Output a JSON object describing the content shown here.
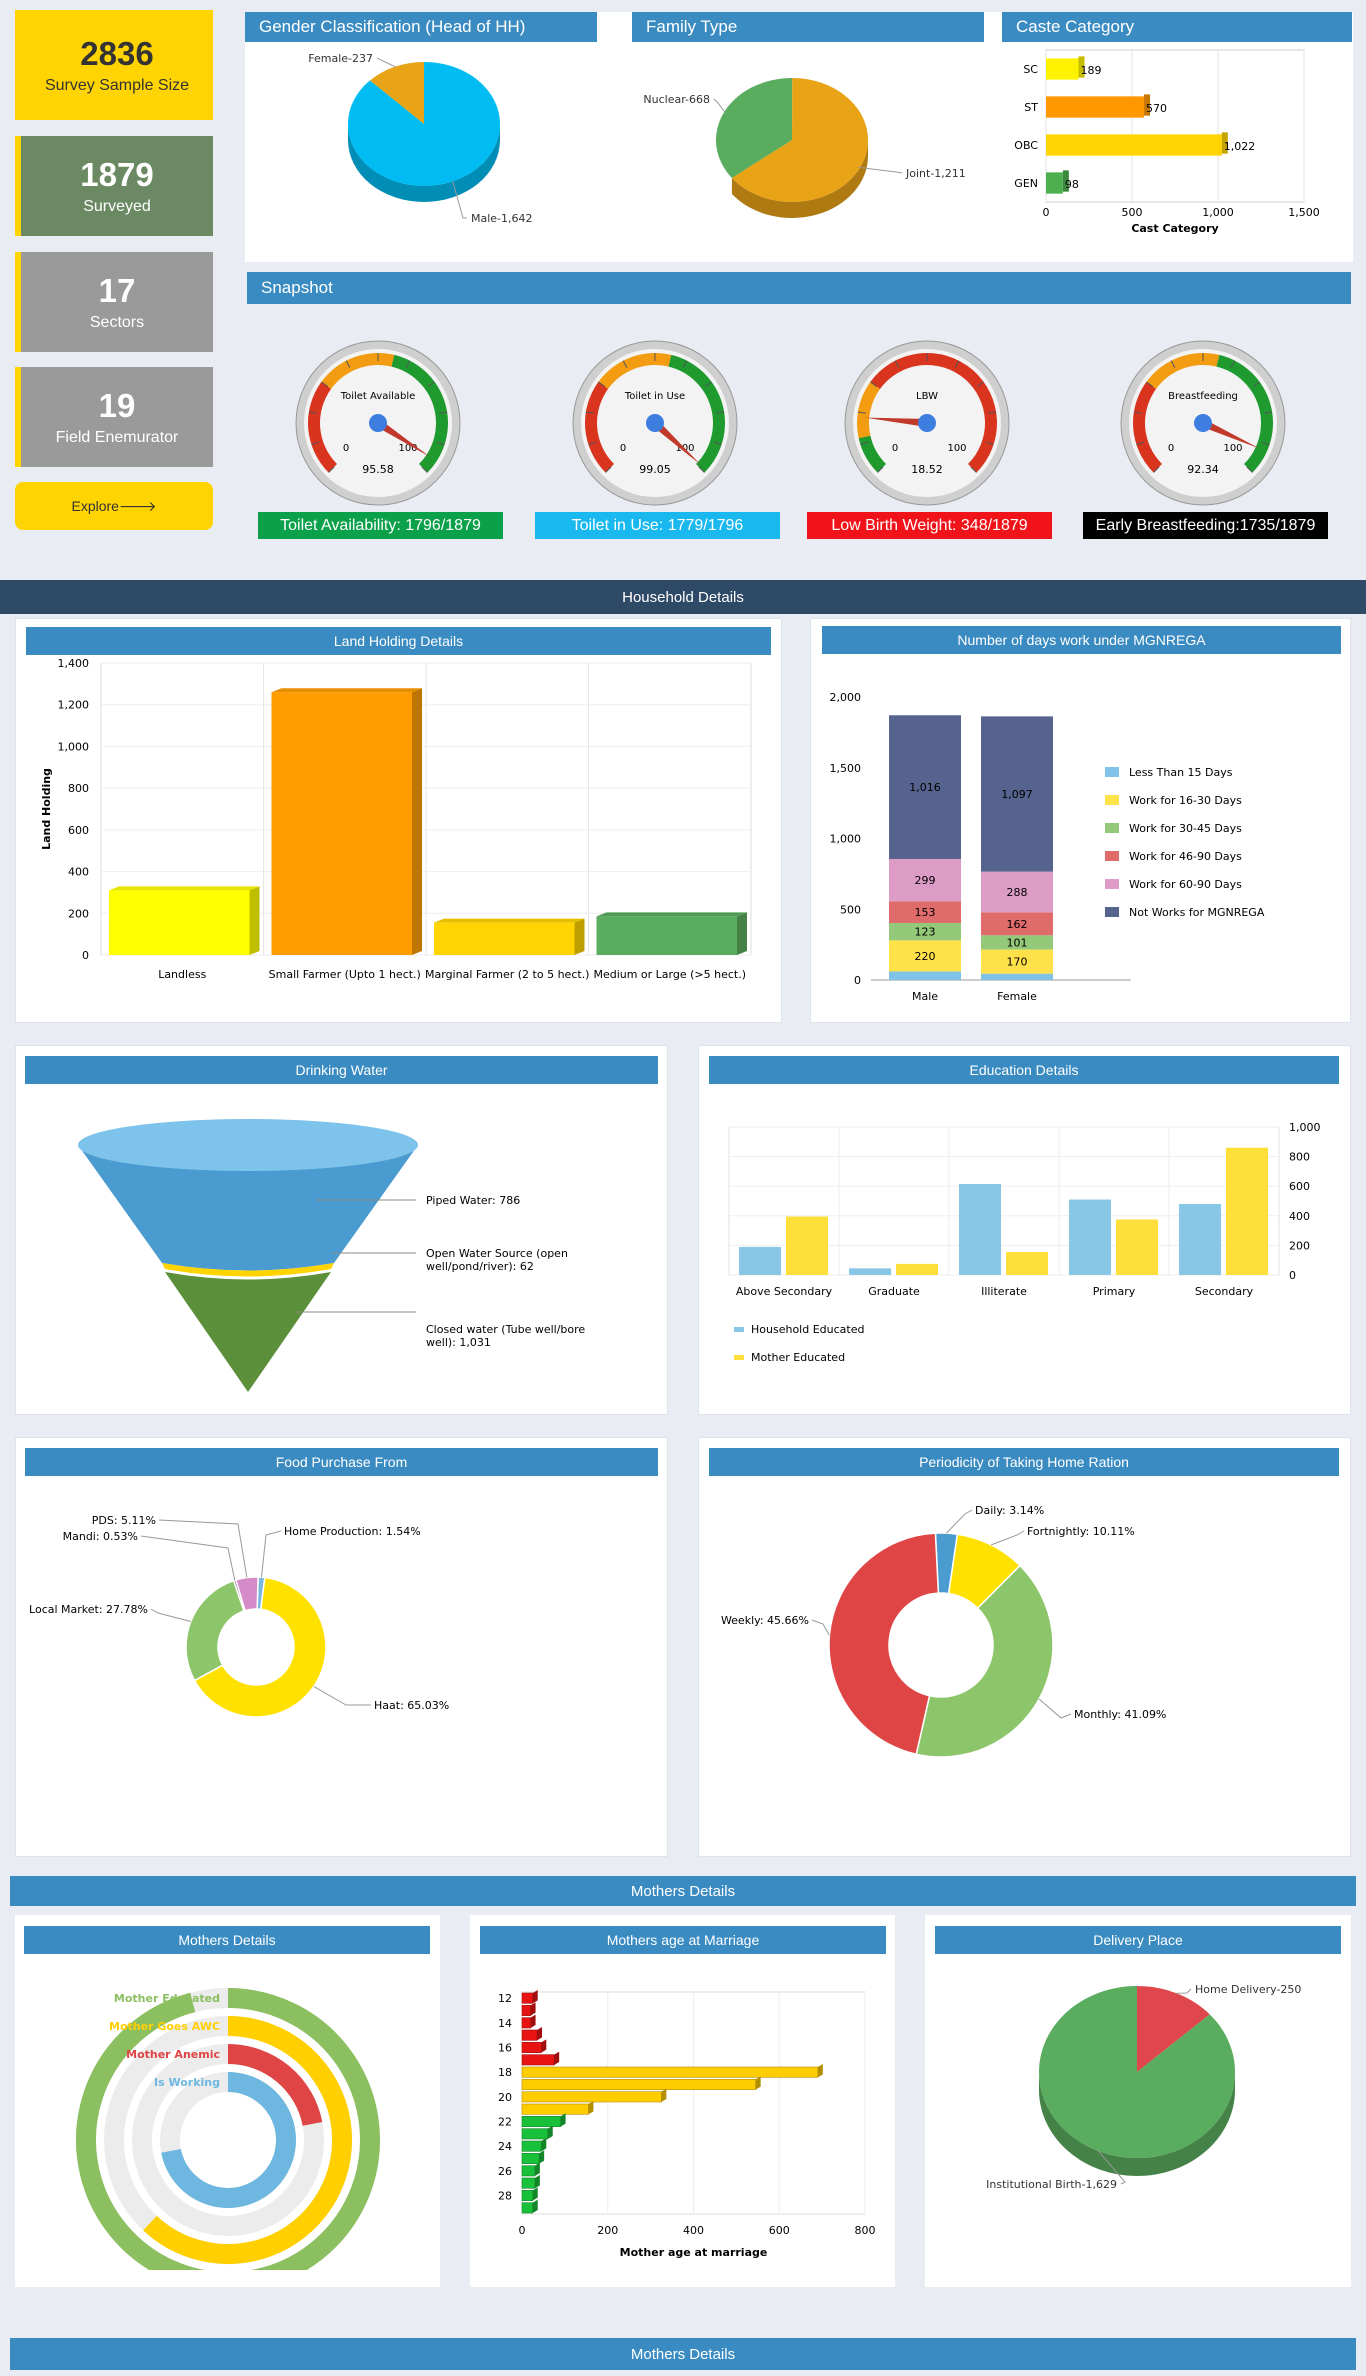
{
  "stats": [
    {
      "value": "2836",
      "label": "Survey Sample Size"
    },
    {
      "value": "1879",
      "label": "Surveyed"
    },
    {
      "value": "17",
      "label": "Sectors"
    },
    {
      "value": "19",
      "label": "Field Enemurator"
    }
  ],
  "explore_label": "Explore🡒",
  "panels": {
    "gender": "Gender Classification (Head of HH)",
    "family": "Family Type",
    "caste": "Caste Category",
    "snapshot": "Snapshot",
    "household": "Household Details",
    "land": "Land Holding Details",
    "mgnrega": "Number of days work under MGNREGA",
    "water": "Drinking Water",
    "education": "Education Details",
    "food": "Food Purchase From",
    "ration": "Periodicity of Taking Home Ration",
    "mothers_band": "Mothers Details",
    "mothers": "Mothers Details",
    "marriage": "Mothers age at Marriage",
    "delivery": "Delivery Place",
    "mothers_band2": "Mothers Details"
  },
  "gauges": [
    {
      "title": "Toilet Available",
      "value": 95.58,
      "value_label": "95.58",
      "min": "0",
      "max": "100",
      "badge": "Toilet Availability: 1796/1879",
      "badge_color": "#0aa14a"
    },
    {
      "title": "Toilet in Use",
      "value": 99.05,
      "value_label": "99.05",
      "min": "0",
      "max": "100",
      "badge": "Toilet in Use: 1779/1796",
      "badge_color": "#19b8ee"
    },
    {
      "title": "LBW",
      "value": 18.52,
      "value_label": "18.52",
      "min": "0",
      "max": "100",
      "badge": "Low Birth Weight: 348/1879",
      "badge_color": "#f0141a"
    },
    {
      "title": "Breastfeeding",
      "value": 92.34,
      "value_label": "92.34",
      "min": "0",
      "max": "100",
      "badge": "Early Breastfeeding:1735/1879",
      "badge_color": "#000000"
    }
  ],
  "chart_data": [
    {
      "id": "gender",
      "type": "pie",
      "slices": [
        {
          "label": "Female-237",
          "value": 237,
          "color": "#e8a317"
        },
        {
          "label": "Male-1,642",
          "value": 1642,
          "color": "#00bcf2"
        }
      ]
    },
    {
      "id": "family",
      "type": "pie",
      "slices": [
        {
          "label": "Nuclear-668",
          "value": 668,
          "color": "#5aad5e"
        },
        {
          "label": "Joint-1,211",
          "value": 1211,
          "color": "#e8a317"
        }
      ]
    },
    {
      "id": "caste",
      "type": "bar",
      "orientation": "horizontal",
      "categories": [
        "SC",
        "ST",
        "OBC",
        "GEN"
      ],
      "values": [
        189,
        570,
        1022,
        98
      ],
      "value_labels": [
        "189",
        "570",
        "1,022",
        "98"
      ],
      "colors": [
        "#fff200",
        "#ff9800",
        "#ffd400",
        "#4caf50"
      ],
      "xlabel": "Cast Category",
      "xlim": [
        0,
        1500
      ],
      "xticks": [
        "0",
        "500",
        "1,000",
        "1,500"
      ]
    },
    {
      "id": "land",
      "type": "bar",
      "categories": [
        "Landless",
        "Small Farmer (Upto 1 hect.)",
        "Marginal Farmer (2 to 5 hect.)",
        "Medium or Large (>5 hect.)"
      ],
      "values": [
        310,
        1260,
        155,
        185
      ],
      "colors": [
        "#ffff00",
        "#ff9d00",
        "#ffd400",
        "#5aad5e"
      ],
      "ylabel": "Land Holding",
      "ylim": [
        0,
        1400
      ],
      "yticks": [
        "0",
        "200",
        "400",
        "600",
        "800",
        "1,000",
        "1,200",
        "1,400"
      ]
    },
    {
      "id": "mgnrega",
      "type": "bar",
      "stacked": true,
      "categories": [
        "Male",
        "Female"
      ],
      "series": [
        {
          "name": "Less Than 15 Days",
          "values": [
            60,
            45
          ],
          "labels": [
            "",
            ""
          ],
          "color": "#7fc3e6"
        },
        {
          "name": "Work for 16-30 Days",
          "values": [
            220,
            170
          ],
          "labels": [
            "220",
            "170"
          ],
          "color": "#ffe24a"
        },
        {
          "name": "Work for 30-45 Days",
          "values": [
            123,
            101
          ],
          "labels": [
            "123",
            "101"
          ],
          "color": "#95c97a"
        },
        {
          "name": "Work for 46-90 Days",
          "values": [
            153,
            162
          ],
          "labels": [
            "153",
            "162"
          ],
          "color": "#e06b6b"
        },
        {
          "name": "Work for 60-90 Days",
          "values": [
            299,
            288
          ],
          "labels": [
            "299",
            "288"
          ],
          "color": "#dc9cc6"
        },
        {
          "name": "Not Works for MGNREGA",
          "values": [
            1016,
            1097
          ],
          "labels": [
            "1,016",
            "1,097"
          ],
          "color": "#55638e"
        }
      ],
      "ylim": [
        0,
        2000
      ],
      "yticks": [
        "0",
        "500",
        "1,000",
        "1,500",
        "2,000"
      ]
    },
    {
      "id": "water",
      "type": "funnel",
      "items": [
        {
          "label": "Piped Water: 786",
          "value": 786,
          "color": "#4a9bcf"
        },
        {
          "label": "Open Water Source (open well/pond/river): 62",
          "value": 62,
          "color": "#ffd400"
        },
        {
          "label": "Closed water (Tube well/bore well): 1,031",
          "value": 1031,
          "color": "#5c8f3a"
        }
      ]
    },
    {
      "id": "education",
      "type": "bar",
      "categories": [
        "Above Secondary",
        "Graduate",
        "Illiterate",
        "Primary",
        "Secondary"
      ],
      "series": [
        {
          "name": "Household Educated",
          "values": [
            190,
            45,
            615,
            510,
            480
          ],
          "color": "#89c7e6"
        },
        {
          "name": "Mother Educated",
          "values": [
            395,
            75,
            155,
            375,
            860
          ],
          "color": "#ffdf3a"
        }
      ],
      "ylim": [
        0,
        1000
      ],
      "yticks": [
        "0",
        "200",
        "400",
        "600",
        "800",
        "1,000"
      ]
    },
    {
      "id": "food",
      "type": "pie",
      "donut": true,
      "slices": [
        {
          "label": "Home Production: 1.54%",
          "value": 1.54,
          "color": "#7ab8e0"
        },
        {
          "label": "Haat: 65.03%",
          "value": 65.03,
          "color": "#ffe100"
        },
        {
          "label": "Local Market: 27.78%",
          "value": 27.78,
          "color": "#8cc56a"
        },
        {
          "label": "Mandi: 0.53%",
          "value": 0.53,
          "color": "#a55d9b"
        },
        {
          "label": "PDS: 5.11%",
          "value": 5.11,
          "color": "#d58bc8"
        }
      ]
    },
    {
      "id": "ration",
      "type": "pie",
      "donut": true,
      "slices": [
        {
          "label": "Daily: 3.14%",
          "value": 3.14,
          "color": "#4a9bcf"
        },
        {
          "label": "Fortnightly: 10.11%",
          "value": 10.11,
          "color": "#ffe100"
        },
        {
          "label": "Monthly: 41.09%",
          "value": 41.09,
          "color": "#8cc56a"
        },
        {
          "label": "Weekly: 45.66%",
          "value": 45.66,
          "color": "#e04545"
        }
      ]
    },
    {
      "id": "mothers",
      "type": "radial-bar",
      "items": [
        {
          "label": "Mother Educated",
          "value": 96,
          "color": "#8cbf5f"
        },
        {
          "label": "Mother Goes AWC",
          "value": 62,
          "color": "#ffcf00"
        },
        {
          "label": "Mother Anemic",
          "value": 22,
          "color": "#e04545"
        },
        {
          "label": "Is Working",
          "value": 72,
          "color": "#6db7e0"
        }
      ]
    },
    {
      "id": "marriage",
      "type": "bar",
      "orientation": "horizontal",
      "categories": [
        "12",
        "13",
        "14",
        "15",
        "16",
        "17",
        "18",
        "19",
        "20",
        "21",
        "22",
        "23",
        "24",
        "25",
        "26",
        "27",
        "28",
        "29"
      ],
      "values": [
        25,
        20,
        20,
        35,
        45,
        75,
        690,
        545,
        325,
        155,
        90,
        60,
        45,
        40,
        30,
        30,
        25,
        25
      ],
      "xlabel": "Mother age at marriage",
      "xlim": [
        0,
        800
      ],
      "xticks": [
        "0",
        "200",
        "400",
        "600",
        "800"
      ],
      "ytick_labels": [
        "12",
        "14",
        "16",
        "18",
        "20",
        "22",
        "24",
        "26",
        "28"
      ]
    },
    {
      "id": "delivery",
      "type": "pie",
      "slices": [
        {
          "label": "Home Delivery-250",
          "value": 250,
          "color": "#e0474c"
        },
        {
          "label": "Institutional Birth-1,629",
          "value": 1629,
          "color": "#5aad5e"
        }
      ]
    }
  ]
}
